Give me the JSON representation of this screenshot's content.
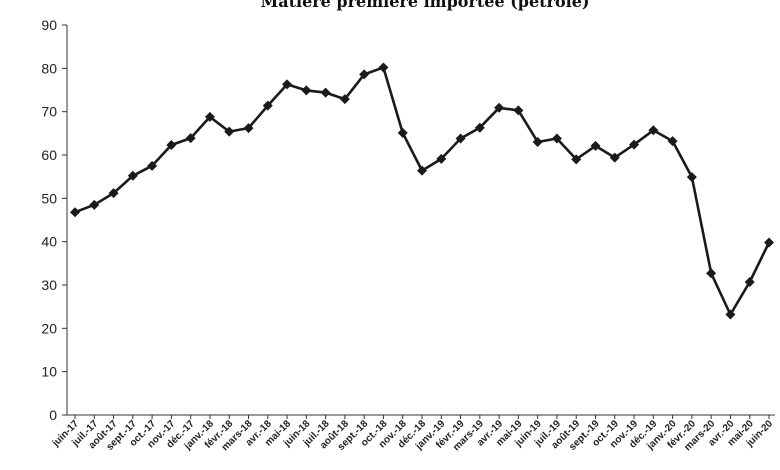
{
  "chart_data": {
    "type": "line",
    "title": "Matière première importée (pétrole)",
    "xlabel": "",
    "ylabel": "",
    "ylim": [
      0,
      90
    ],
    "yticks": [
      0,
      10,
      20,
      30,
      40,
      50,
      60,
      70,
      80,
      90
    ],
    "grid": false,
    "categories": [
      "juin-17",
      "juil.-17",
      "août-17",
      "sept.-17",
      "oct.-17",
      "nov.-17",
      "déc.-17",
      "janv.-18",
      "févr.-18",
      "mars-18",
      "avr.-18",
      "mai-18",
      "juin-18",
      "juil.-18",
      "août-18",
      "sept.-18",
      "oct.-18",
      "nov.-18",
      "déc.-18",
      "janv.-19",
      "févr.-19",
      "mars-19",
      "avr.-19",
      "mai-19",
      "juin-19",
      "juil.-19",
      "août-19",
      "sept.-19",
      "oct.-19",
      "nov.-19",
      "déc.-19",
      "janv.-20",
      "févr.-20",
      "mars-20",
      "avr.-20",
      "mai-20",
      "juin-20"
    ],
    "series": [
      {
        "values": [
          46.8,
          48.5,
          51.2,
          55.2,
          57.5,
          62.3,
          63.9,
          68.8,
          65.4,
          66.2,
          71.4,
          76.3,
          74.9,
          74.4,
          72.9,
          78.6,
          80.2,
          65.1,
          56.4,
          59.1,
          63.8,
          66.3,
          70.9,
          70.3,
          63.0,
          63.8,
          59.0,
          62.1,
          59.4,
          62.4,
          65.7,
          63.2,
          54.9,
          32.7,
          23.2,
          30.7,
          39.8
        ],
        "color": "#1a1a1a"
      }
    ]
  }
}
